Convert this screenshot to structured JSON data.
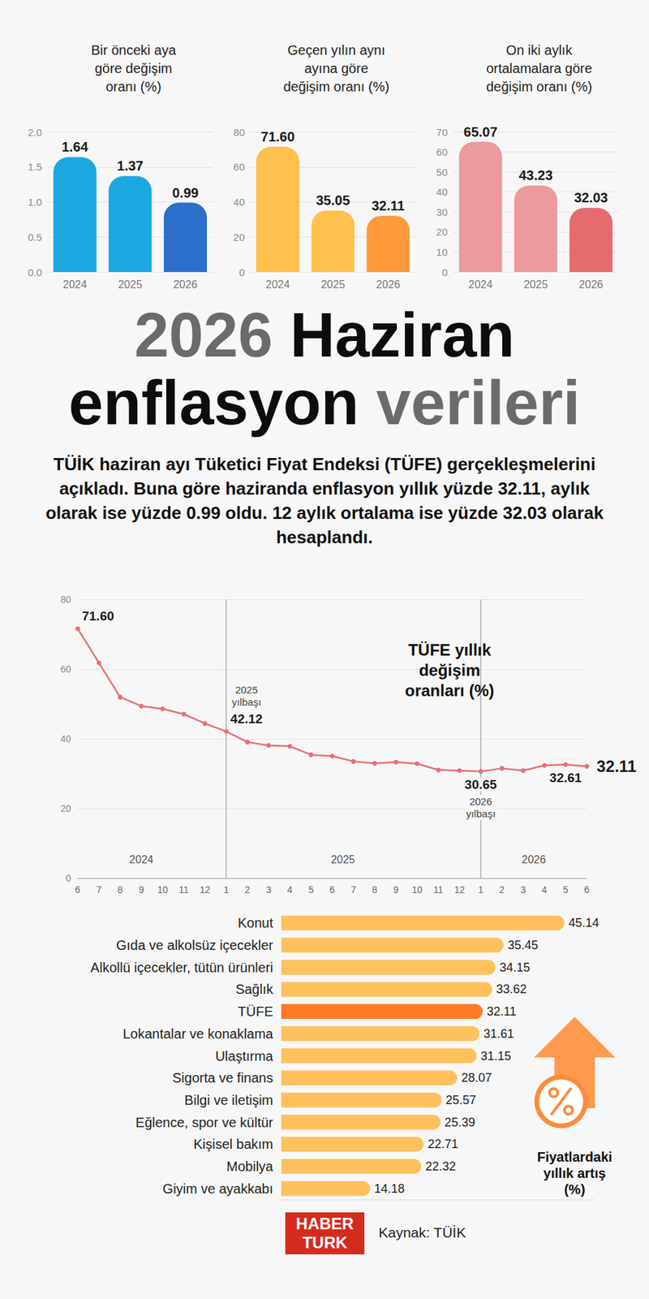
{
  "header": {
    "title": "2026 Haziran enflasyon verileri",
    "text": "TÜİK haziran ayı Tüketici Fiyat Endeksi (TÜFE) gerçekleşmelerini açıkladı. Buna göre haziranda enflasyon yıllık yüzde 32.11, aylık olarak ise yüzde 0.99 oldu. 12 aylık ortalama ise yüzde 32.03 olarak hesaplandı."
  },
  "chart_data": [
    {
      "type": "bar",
      "title": "Bir önceki aya göre değişim oranı (%)",
      "categories": [
        "2024",
        "2025",
        "2026"
      ],
      "values": [
        1.64,
        1.37,
        0.99
      ],
      "colors": [
        "#1ba8e0",
        "#1ba8e0",
        "#2b6fcc"
      ],
      "ylim": [
        0,
        2.0
      ],
      "yticks": [
        {
          "value": 0,
          "label": "0.0"
        },
        {
          "value": 0.5,
          "label": "0.5"
        },
        {
          "value": 1.0,
          "label": "1.0"
        },
        {
          "value": 1.5,
          "label": "1.5"
        },
        {
          "value": 2.0,
          "label": "2.0"
        }
      ],
      "grid": true,
      "data_labels": true
    },
    {
      "type": "bar",
      "title": "Geçen yılın aynı ayına göre değişim oranı (%)",
      "categories": [
        "2024",
        "2025",
        "2026"
      ],
      "values": [
        71.6,
        35.05,
        32.11
      ],
      "value_labels": [
        "71.60",
        "35.05",
        "32.11"
      ],
      "colors": [
        "#ffc04d",
        "#ffc04d",
        "#ff9a3c"
      ],
      "ylim": [
        0,
        80
      ],
      "yticks": [
        0,
        20,
        40,
        60,
        80
      ],
      "grid": true,
      "data_labels": true
    },
    {
      "type": "bar",
      "title": "On iki aylık ortalamalara göre değişim oranı (%)",
      "categories": [
        "2024",
        "2025",
        "2026"
      ],
      "values": [
        65.07,
        43.23,
        32.03
      ],
      "colors": [
        "#ec9a9e",
        "#ec9a9e",
        "#e56b6f"
      ],
      "ylim": [
        0,
        70
      ],
      "yticks": [
        0,
        10,
        20,
        30,
        40,
        50,
        60,
        70
      ],
      "grid": true,
      "data_labels": true
    },
    {
      "type": "line",
      "title": "TÜFE yıllık değişim oranları (%)",
      "categories": [
        "6",
        "7",
        "8",
        "9",
        "10",
        "11",
        "12",
        "1",
        "2",
        "3",
        "4",
        "5",
        "6",
        "7",
        "8",
        "9",
        "10",
        "11",
        "12",
        "1",
        "2",
        "3",
        "4",
        "5",
        "6"
      ],
      "values": [
        71.6,
        61.78,
        51.97,
        49.38,
        48.58,
        47.09,
        44.38,
        42.12,
        39.05,
        38.1,
        37.86,
        35.41,
        35.05,
        33.52,
        32.95,
        33.29,
        32.87,
        31.07,
        30.89,
        30.65,
        31.53,
        30.87,
        32.37,
        32.61,
        32.11
      ],
      "value_labels": [
        "71.60",
        null,
        null,
        null,
        null,
        null,
        null,
        "42.12",
        null,
        null,
        null,
        null,
        null,
        null,
        null,
        null,
        null,
        null,
        null,
        "30.65",
        null,
        null,
        null,
        "32.61",
        "32.11"
      ],
      "color": "#e8706f",
      "marker": "circle",
      "ylim": [
        0,
        80
      ],
      "yticks": [
        0,
        20,
        40,
        60,
        80
      ],
      "grid": true,
      "data_labels": true,
      "annotations": [
        {
          "at": 7,
          "label": "2025 yılbaşı"
        },
        {
          "at": 19,
          "label": "2026 yılbaşı"
        }
      ],
      "periods": [
        {
          "label": "2024",
          "from": 0,
          "to": 6
        },
        {
          "label": "2025",
          "from": 7,
          "to": 18
        },
        {
          "label": "2026",
          "from": 19,
          "to": 24
        }
      ]
    },
    {
      "type": "bar",
      "orientation": "horizontal",
      "title": "Fiyatlardaki yıllık artış (%)",
      "categories": [
        "Konut",
        "Gıda ve alkolsüz içecekler",
        "Alkollü içecekler, tütün ürünleri",
        "Sağlık",
        "TÜFE",
        "Lokantalar ve konaklama",
        "Ulaştırma",
        "Sigorta ve finans",
        "Bilgi ve iletişim",
        "Eğlence, spor ve kültür",
        "Kişisel bakım",
        "Mobilya",
        "Giyim ve ayakkabı"
      ],
      "values": [
        45.14,
        35.45,
        34.15,
        33.62,
        32.11,
        31.61,
        31.15,
        28.07,
        25.57,
        25.39,
        22.71,
        22.32,
        14.18
      ],
      "colors": [
        "#ffc15e",
        "#ffc15e",
        "#ffc15e",
        "#ffc15e",
        "#ff7a22",
        "#ffc15e",
        "#ffc15e",
        "#ffc15e",
        "#ffc15e",
        "#ffc15e",
        "#ffc15e",
        "#ffc15e",
        "#ffc15e"
      ],
      "xlim": [
        0,
        50
      ],
      "grid": false,
      "tick_labels": false,
      "data_labels": true
    }
  ],
  "footer": {
    "logo": "HABER TURK",
    "source": "Kaynak: TÜİK"
  }
}
